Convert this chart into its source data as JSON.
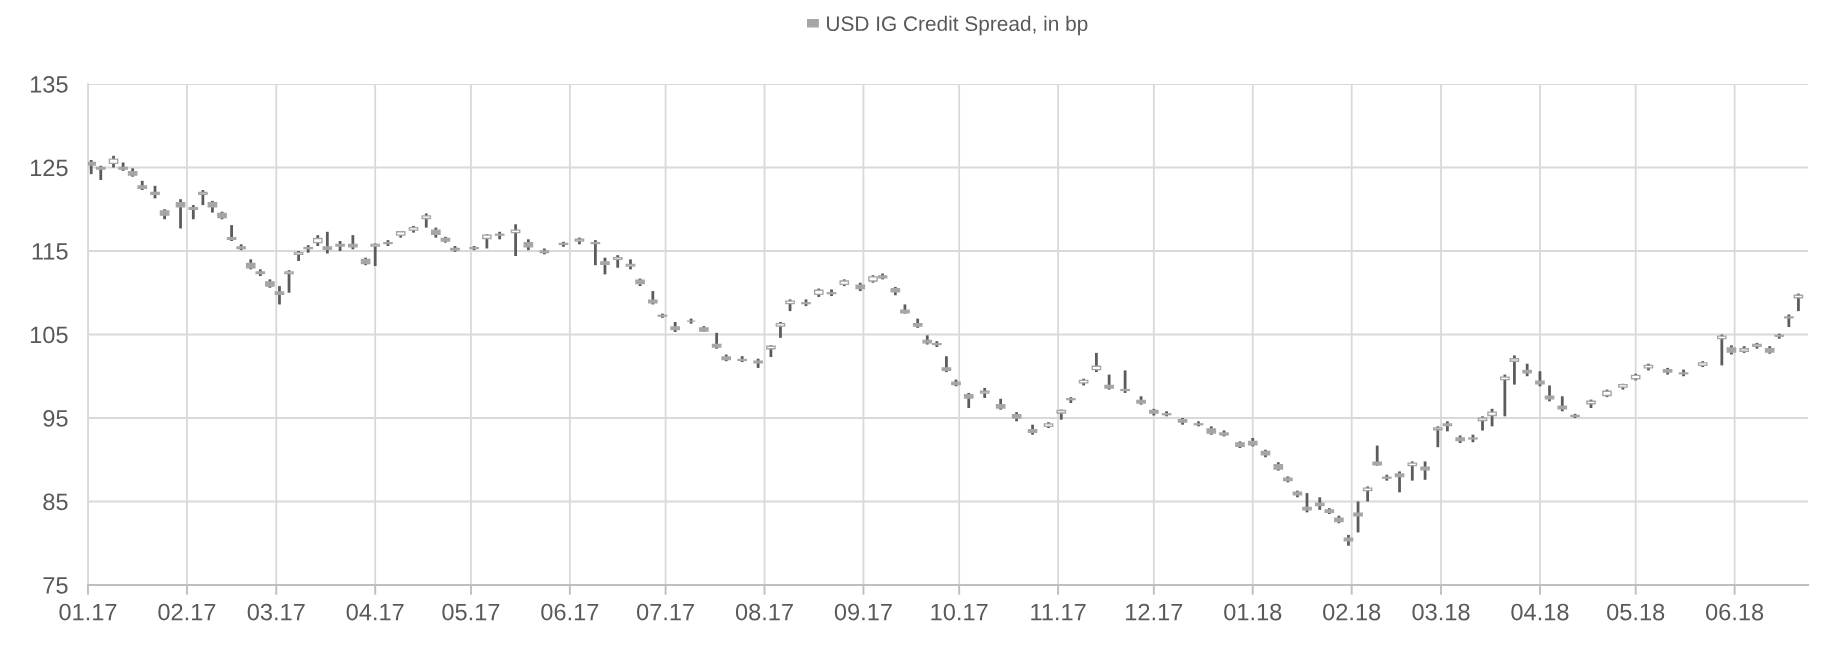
{
  "chart_data": {
    "type": "candlestick",
    "series": [
      {
        "name": "USD IG Credit Spread, in bp",
        "color": "#a6a6a6",
        "x": [
          "2017-01-02",
          "2017-01-05",
          "2017-01-09",
          "2017-01-12",
          "2017-01-15",
          "2017-01-18",
          "2017-01-22",
          "2017-01-25",
          "2017-01-30",
          "2017-02-03",
          "2017-02-06",
          "2017-02-09",
          "2017-02-12",
          "2017-02-15",
          "2017-02-18",
          "2017-02-21",
          "2017-02-24",
          "2017-02-27",
          "2017-03-02",
          "2017-03-05",
          "2017-03-08",
          "2017-03-11",
          "2017-03-14",
          "2017-03-17",
          "2017-03-21",
          "2017-03-25",
          "2017-03-29",
          "2017-04-01",
          "2017-04-05",
          "2017-04-09",
          "2017-04-13",
          "2017-04-17",
          "2017-04-20",
          "2017-04-23",
          "2017-04-26",
          "2017-05-02",
          "2017-05-06",
          "2017-05-10",
          "2017-05-15",
          "2017-05-19",
          "2017-05-24",
          "2017-05-30",
          "2017-06-04",
          "2017-06-09",
          "2017-06-12",
          "2017-06-16",
          "2017-06-20",
          "2017-06-23",
          "2017-06-27",
          "2017-06-30",
          "2017-07-04",
          "2017-07-09",
          "2017-07-13",
          "2017-07-17",
          "2017-07-20",
          "2017-07-25",
          "2017-07-30",
          "2017-08-03",
          "2017-08-06",
          "2017-08-09",
          "2017-08-14",
          "2017-08-18",
          "2017-08-22",
          "2017-08-26",
          "2017-08-31",
          "2017-09-04",
          "2017-09-07",
          "2017-09-11",
          "2017-09-14",
          "2017-09-18",
          "2017-09-21",
          "2017-09-24",
          "2017-09-27",
          "2017-09-30",
          "2017-10-04",
          "2017-10-09",
          "2017-10-14",
          "2017-10-19",
          "2017-10-24",
          "2017-10-29",
          "2017-11-02",
          "2017-11-05",
          "2017-11-09",
          "2017-11-13",
          "2017-11-17",
          "2017-11-22",
          "2017-11-27",
          "2017-12-01",
          "2017-12-05",
          "2017-12-10",
          "2017-12-15",
          "2017-12-19",
          "2017-12-23",
          "2017-12-28",
          "2018-01-01",
          "2018-01-05",
          "2018-01-09",
          "2018-01-12",
          "2018-01-15",
          "2018-01-18",
          "2018-01-22",
          "2018-01-25",
          "2018-01-28",
          "2018-01-31",
          "2018-02-03",
          "2018-02-06",
          "2018-02-09",
          "2018-02-12",
          "2018-02-16",
          "2018-02-20",
          "2018-02-24",
          "2018-02-28",
          "2018-03-03",
          "2018-03-07",
          "2018-03-11",
          "2018-03-14",
          "2018-03-17",
          "2018-03-21",
          "2018-03-24",
          "2018-03-28",
          "2018-04-01",
          "2018-04-04",
          "2018-04-08",
          "2018-04-12",
          "2018-04-17",
          "2018-04-22",
          "2018-04-27",
          "2018-05-01",
          "2018-05-05",
          "2018-05-11",
          "2018-05-16",
          "2018-05-22",
          "2018-05-28",
          "2018-05-31",
          "2018-06-04",
          "2018-06-08",
          "2018-06-12",
          "2018-06-15",
          "2018-06-18",
          "2018-06-21"
        ],
        "ohlc": [
          [
            125.6,
            125.9,
            124.2,
            125.3
          ],
          [
            125.0,
            125.2,
            123.5,
            124.8
          ],
          [
            125.5,
            126.4,
            125.0,
            126.0
          ],
          [
            125.0,
            125.6,
            124.6,
            124.8
          ],
          [
            124.5,
            124.9,
            123.9,
            124.1
          ],
          [
            122.8,
            123.4,
            122.3,
            122.5
          ],
          [
            122.0,
            122.8,
            121.3,
            121.8
          ],
          [
            119.8,
            120.0,
            118.8,
            119.3
          ],
          [
            120.8,
            121.2,
            117.7,
            120.3
          ],
          [
            120.2,
            120.5,
            118.8,
            120.0
          ],
          [
            121.8,
            122.3,
            120.5,
            122.0
          ],
          [
            120.8,
            121.0,
            119.6,
            120.3
          ],
          [
            119.5,
            119.7,
            118.8,
            119.0
          ],
          [
            116.6,
            118.1,
            116.2,
            116.4
          ],
          [
            115.5,
            115.8,
            115.1,
            115.3
          ],
          [
            113.5,
            114.0,
            112.8,
            113.0
          ],
          [
            112.5,
            112.8,
            112.0,
            112.3
          ],
          [
            111.3,
            111.6,
            110.6,
            110.8
          ],
          [
            110.1,
            110.8,
            108.6,
            109.8
          ],
          [
            112.3,
            112.7,
            110.0,
            112.5
          ],
          [
            114.6,
            115.0,
            113.8,
            114.8
          ],
          [
            115.3,
            115.7,
            114.8,
            115.4
          ],
          [
            116.0,
            116.9,
            115.6,
            116.5
          ],
          [
            115.5,
            117.3,
            114.7,
            115.2
          ],
          [
            115.8,
            116.2,
            115.0,
            115.6
          ],
          [
            115.8,
            116.9,
            115.2,
            115.5
          ],
          [
            114.0,
            114.2,
            113.3,
            113.5
          ],
          [
            115.6,
            115.9,
            113.2,
            115.8
          ],
          [
            116.0,
            116.3,
            115.6,
            115.9
          ],
          [
            116.9,
            117.4,
            116.6,
            117.3
          ],
          [
            117.5,
            118.0,
            117.2,
            117.8
          ],
          [
            118.9,
            119.5,
            117.8,
            119.2
          ],
          [
            117.5,
            117.8,
            116.6,
            117.0
          ],
          [
            116.5,
            116.7,
            116.0,
            116.2
          ],
          [
            115.3,
            115.6,
            114.9,
            115.1
          ],
          [
            115.3,
            115.6,
            115.1,
            115.4
          ],
          [
            116.5,
            117.0,
            115.3,
            116.9
          ],
          [
            116.9,
            117.3,
            116.4,
            117.0
          ],
          [
            117.2,
            118.2,
            114.4,
            117.5
          ],
          [
            116.0,
            116.4,
            115.1,
            115.5
          ],
          [
            115.0,
            115.3,
            114.6,
            114.8
          ],
          [
            115.8,
            116.1,
            115.5,
            115.9
          ],
          [
            116.2,
            116.6,
            115.8,
            116.4
          ],
          [
            116.0,
            116.3,
            113.3,
            115.9
          ],
          [
            113.7,
            114.2,
            112.2,
            113.4
          ],
          [
            114.0,
            114.5,
            113.0,
            114.2
          ],
          [
            113.2,
            114.0,
            112.8,
            113.4
          ],
          [
            111.5,
            111.7,
            110.8,
            111.1
          ],
          [
            109.1,
            110.2,
            108.6,
            108.8
          ],
          [
            107.3,
            107.5,
            107.0,
            107.2
          ],
          [
            105.9,
            106.5,
            105.3,
            105.6
          ],
          [
            106.6,
            106.9,
            106.3,
            106.6
          ],
          [
            105.8,
            106.0,
            105.3,
            105.4
          ],
          [
            103.8,
            105.2,
            103.3,
            103.5
          ],
          [
            102.3,
            102.6,
            101.8,
            102.0
          ],
          [
            102.0,
            102.4,
            101.7,
            101.9
          ],
          [
            101.8,
            102.1,
            101.0,
            101.6
          ],
          [
            103.3,
            103.7,
            102.3,
            103.6
          ],
          [
            106.0,
            106.5,
            104.6,
            106.3
          ],
          [
            108.7,
            109.2,
            107.8,
            109.0
          ],
          [
            108.8,
            109.2,
            108.4,
            108.7
          ],
          [
            109.8,
            110.5,
            109.5,
            110.3
          ],
          [
            110.0,
            110.4,
            109.6,
            109.9
          ],
          [
            111.0,
            111.6,
            110.8,
            111.4
          ],
          [
            110.9,
            111.2,
            110.2,
            110.5
          ],
          [
            111.4,
            112.1,
            111.2,
            111.9
          ],
          [
            112.0,
            112.3,
            111.6,
            111.8
          ],
          [
            110.5,
            110.7,
            109.7,
            110.1
          ],
          [
            107.9,
            108.6,
            107.5,
            107.6
          ],
          [
            106.3,
            106.9,
            105.8,
            106.0
          ],
          [
            104.3,
            104.9,
            103.8,
            104.0
          ],
          [
            103.9,
            104.2,
            103.5,
            103.8
          ],
          [
            101.0,
            102.4,
            100.5,
            100.7
          ],
          [
            99.3,
            99.6,
            98.8,
            99.0
          ],
          [
            97.8,
            98.0,
            96.2,
            97.4
          ],
          [
            98.0,
            98.6,
            97.4,
            98.2
          ],
          [
            96.6,
            97.3,
            96.0,
            96.2
          ],
          [
            95.4,
            95.7,
            94.6,
            95.0
          ],
          [
            93.6,
            94.2,
            93.0,
            93.3
          ],
          [
            94.0,
            94.5,
            93.8,
            94.3
          ],
          [
            95.6,
            96.0,
            94.8,
            95.9
          ],
          [
            97.2,
            97.5,
            96.8,
            97.3
          ],
          [
            99.2,
            99.7,
            98.9,
            99.5
          ],
          [
            100.8,
            102.8,
            100.5,
            101.2
          ],
          [
            98.9,
            100.2,
            98.4,
            98.6
          ],
          [
            98.4,
            100.7,
            98.0,
            98.3
          ],
          [
            97.1,
            97.6,
            96.6,
            96.8
          ],
          [
            95.9,
            96.1,
            95.3,
            95.6
          ],
          [
            95.5,
            95.8,
            95.2,
            95.4
          ],
          [
            94.8,
            95.0,
            94.2,
            94.5
          ],
          [
            94.3,
            94.6,
            94.0,
            94.2
          ],
          [
            93.7,
            94.0,
            93.0,
            93.2
          ],
          [
            93.2,
            93.5,
            92.8,
            93.0
          ],
          [
            92.0,
            92.2,
            91.4,
            91.6
          ],
          [
            92.2,
            92.6,
            91.6,
            91.8
          ],
          [
            91.0,
            91.2,
            90.3,
            90.6
          ],
          [
            89.4,
            89.7,
            88.7,
            88.9
          ],
          [
            87.8,
            88.0,
            87.3,
            87.5
          ],
          [
            86.1,
            86.3,
            85.5,
            85.8
          ],
          [
            84.3,
            86.0,
            83.7,
            84.0
          ],
          [
            84.8,
            85.5,
            84.0,
            84.5
          ],
          [
            84.0,
            84.2,
            83.5,
            83.7
          ],
          [
            83.0,
            83.3,
            82.4,
            82.6
          ],
          [
            80.6,
            81.0,
            79.7,
            80.3
          ],
          [
            83.6,
            85.0,
            81.3,
            83.3
          ],
          [
            86.3,
            86.8,
            85.0,
            86.6
          ],
          [
            89.7,
            91.7,
            89.3,
            89.4
          ],
          [
            87.9,
            88.2,
            87.5,
            87.8
          ],
          [
            88.3,
            88.6,
            86.1,
            88.0
          ],
          [
            89.3,
            89.8,
            87.5,
            89.6
          ],
          [
            89.1,
            89.8,
            87.6,
            88.8
          ],
          [
            93.6,
            94.0,
            91.5,
            93.8
          ],
          [
            94.3,
            94.6,
            93.4,
            94.1
          ],
          [
            92.6,
            92.9,
            92.0,
            92.3
          ],
          [
            92.6,
            93.0,
            92.1,
            92.5
          ],
          [
            94.7,
            95.2,
            93.5,
            95.0
          ],
          [
            95.3,
            96.1,
            94.0,
            95.7
          ],
          [
            99.6,
            100.2,
            95.2,
            99.9
          ],
          [
            101.8,
            102.5,
            99.0,
            102.1
          ],
          [
            100.7,
            101.5,
            100.0,
            100.4
          ],
          [
            99.4,
            100.6,
            98.8,
            99.1
          ],
          [
            97.6,
            98.9,
            97.0,
            97.3
          ],
          [
            96.4,
            97.6,
            95.8,
            96.1
          ],
          [
            95.3,
            95.5,
            95.0,
            95.2
          ],
          [
            96.7,
            97.2,
            96.2,
            97.0
          ],
          [
            97.7,
            98.4,
            97.5,
            98.2
          ],
          [
            98.7,
            99.1,
            98.4,
            99.0
          ],
          [
            99.7,
            100.3,
            99.5,
            100.1
          ],
          [
            101.0,
            101.5,
            100.7,
            101.3
          ],
          [
            100.8,
            101.0,
            100.2,
            100.5
          ],
          [
            100.3,
            100.8,
            100.0,
            100.4
          ],
          [
            101.3,
            101.8,
            101.1,
            101.6
          ],
          [
            104.5,
            105.0,
            101.3,
            104.8
          ],
          [
            103.4,
            103.7,
            102.6,
            102.9
          ],
          [
            103.0,
            103.6,
            102.8,
            103.3
          ],
          [
            103.6,
            104.0,
            103.3,
            103.8
          ],
          [
            103.3,
            103.6,
            102.7,
            102.9
          ],
          [
            104.9,
            105.1,
            104.5,
            104.8
          ],
          [
            107.1,
            107.4,
            105.9,
            107.0
          ],
          [
            109.4,
            109.9,
            107.8,
            109.7
          ]
        ]
      }
    ],
    "xlim": [
      "2017-01-01",
      "2018-06-24"
    ],
    "xticks": [
      {
        "value": "2017-01-01",
        "label": "01.17"
      },
      {
        "value": "2017-02-01",
        "label": "02.17"
      },
      {
        "value": "2017-03-01",
        "label": "03.17"
      },
      {
        "value": "2017-04-01",
        "label": "04.17"
      },
      {
        "value": "2017-05-01",
        "label": "05.17"
      },
      {
        "value": "2017-06-01",
        "label": "06.17"
      },
      {
        "value": "2017-07-01",
        "label": "07.17"
      },
      {
        "value": "2017-08-01",
        "label": "08.17"
      },
      {
        "value": "2017-09-01",
        "label": "09.17"
      },
      {
        "value": "2017-10-01",
        "label": "10.17"
      },
      {
        "value": "2017-11-01",
        "label": "11.17"
      },
      {
        "value": "2017-12-01",
        "label": "12.17"
      },
      {
        "value": "2018-01-01",
        "label": "01.18"
      },
      {
        "value": "2018-02-01",
        "label": "02.18"
      },
      {
        "value": "2018-03-01",
        "label": "03.18"
      },
      {
        "value": "2018-04-01",
        "label": "04.18"
      },
      {
        "value": "2018-05-01",
        "label": "05.18"
      },
      {
        "value": "2018-06-01",
        "label": "06.18"
      }
    ],
    "ylim": [
      75,
      135
    ],
    "yticks": [
      75,
      85,
      95,
      105,
      115,
      125,
      135
    ],
    "grid": true,
    "legend": "top"
  }
}
